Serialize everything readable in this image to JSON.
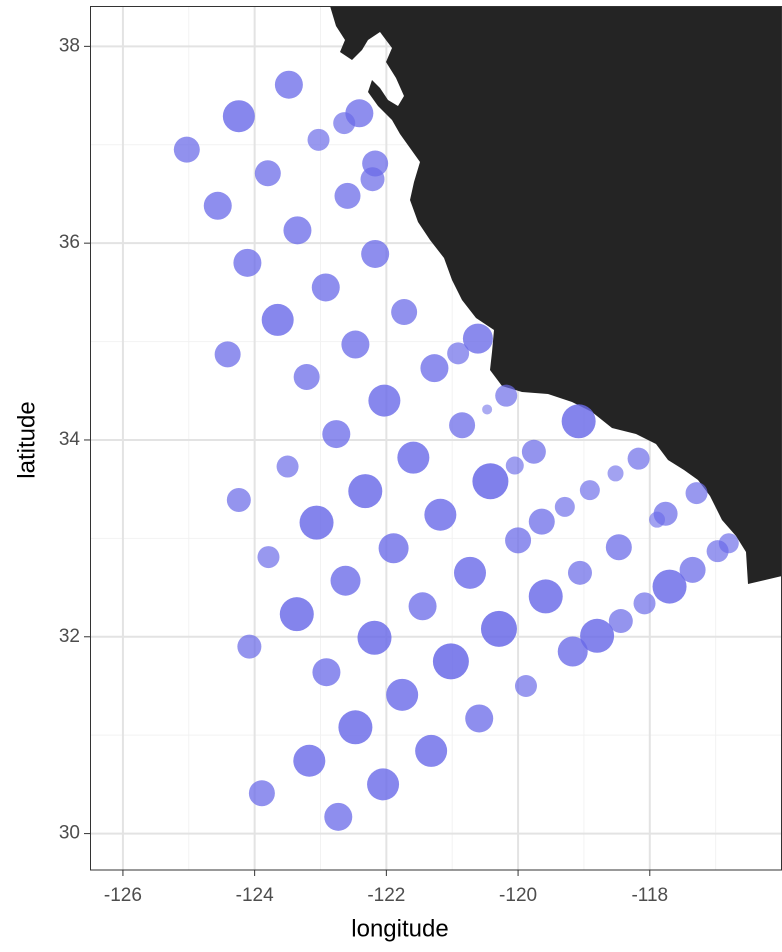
{
  "chart_data": {
    "type": "scatter",
    "x_label": "longitude",
    "y_label": "latitude",
    "xlim": [
      -126.5,
      -116
    ],
    "ylim": [
      29.63,
      38.41
    ],
    "xticks": [
      -126,
      -124,
      -122,
      -120,
      -118
    ],
    "yticks": [
      30,
      32,
      34,
      36,
      38
    ],
    "grid": true,
    "color": "#6a6ae8",
    "x": [
      -123.48,
      -124.24,
      -122.41,
      -122.64,
      -123.03,
      -125.03,
      -123.8,
      -122.17,
      -122.21,
      -122.59,
      -124.56,
      -123.35,
      -122.17,
      -124.11,
      -122.92,
      -121.73,
      -123.65,
      -120.61,
      -122.47,
      -124.41,
      -120.91,
      -121.27,
      -123.21,
      -120.18,
      -120.47,
      -122.03,
      -119.08,
      -120.85,
      -122.76,
      -121.59,
      -119.76,
      -123.5,
      -120.05,
      -120.42,
      -122.32,
      -118.52,
      -118.17,
      -118.91,
      -124.24,
      -119.29,
      -121.18,
      -123.06,
      -119.64,
      -117.76,
      -117.29,
      -120.0,
      -121.89,
      -118.47,
      -117.89,
      -116.97,
      -116.8,
      -123.79,
      -122.62,
      -120.73,
      -119.06,
      -117.35,
      -117.7,
      -119.58,
      -121.45,
      -123.36,
      -118.08,
      -118.44,
      -120.29,
      -118.8,
      -122.18,
      -124.08,
      -119.17,
      -121.02,
      -122.91,
      -119.88,
      -121.76,
      -120.59,
      -122.47,
      -121.32,
      -123.17,
      -122.05,
      -123.89,
      -122.73
    ],
    "y": [
      37.61,
      37.29,
      37.32,
      37.22,
      37.05,
      36.95,
      36.71,
      36.81,
      36.65,
      36.48,
      36.38,
      36.13,
      35.89,
      35.8,
      35.55,
      35.3,
      35.22,
      35.03,
      34.97,
      34.87,
      34.88,
      34.73,
      34.64,
      34.45,
      34.31,
      34.4,
      34.19,
      34.15,
      34.06,
      33.82,
      33.88,
      33.73,
      33.74,
      33.58,
      33.48,
      33.66,
      33.81,
      33.49,
      33.39,
      33.32,
      33.24,
      33.16,
      33.17,
      33.25,
      33.46,
      32.98,
      32.9,
      32.91,
      33.19,
      32.87,
      32.95,
      32.81,
      32.57,
      32.65,
      32.65,
      32.68,
      32.51,
      32.41,
      32.31,
      32.23,
      32.34,
      32.16,
      32.08,
      32.01,
      31.99,
      31.9,
      31.85,
      31.75,
      31.64,
      31.5,
      31.41,
      31.17,
      31.08,
      30.84,
      30.74,
      30.5,
      30.41,
      30.17
    ],
    "size": [
      14,
      16,
      14,
      11,
      11,
      13,
      13,
      13,
      12,
      13,
      14,
      14,
      14,
      14,
      14,
      13,
      16,
      15,
      14,
      13,
      11,
      14,
      13,
      11,
      5,
      16,
      17,
      13,
      14,
      16,
      12,
      11,
      9,
      18,
      17,
      8,
      11,
      10,
      12,
      10,
      16,
      17,
      13,
      12,
      11,
      13,
      15,
      13,
      8,
      11,
      10,
      11,
      15,
      16,
      12,
      13,
      17,
      17,
      14,
      17,
      11,
      12,
      18,
      17,
      17,
      12,
      15,
      18,
      14,
      11,
      16,
      14,
      17,
      16,
      16,
      16,
      13,
      14
    ]
  }
}
